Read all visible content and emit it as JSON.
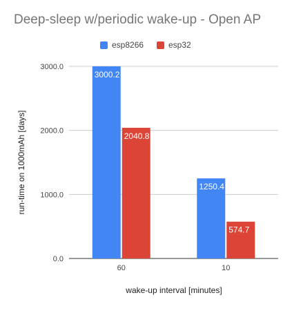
{
  "chart_data": {
    "type": "bar",
    "title": "Deep-sleep w/periodic wake-up - Open AP",
    "xlabel": "wake-up interval [minutes]",
    "ylabel": "run-time on 1000mAh [days]",
    "categories": [
      "60",
      "10"
    ],
    "series": [
      {
        "name": "esp8266",
        "color": "#4285f4",
        "values": [
          3000.2,
          1250.4
        ],
        "labels": [
          "3000.2",
          "1250.4"
        ]
      },
      {
        "name": "esp32",
        "color": "#db4437",
        "values": [
          2040.8,
          574.7
        ],
        "labels": [
          "2040.8",
          "574.7"
        ]
      }
    ],
    "ylim": [
      0,
      3000
    ],
    "yticks": [
      0,
      1000,
      2000,
      3000
    ],
    "ytick_labels": [
      "0.0",
      "1000.0",
      "2000.0",
      "3000.0"
    ],
    "grid": true,
    "legend_position": "top"
  }
}
